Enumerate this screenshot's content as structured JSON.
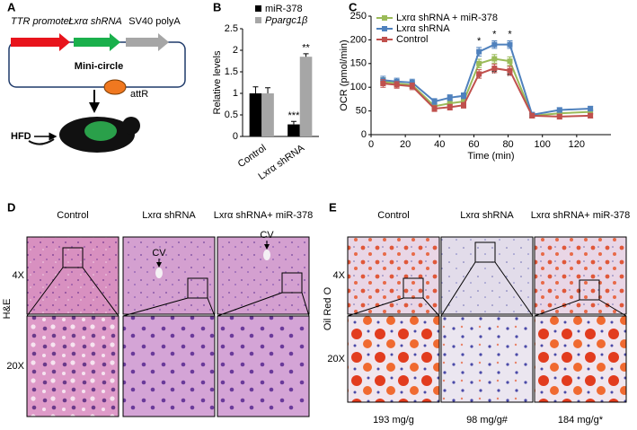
{
  "panel_labels": [
    "A",
    "B",
    "C",
    "D",
    "E"
  ],
  "construct": {
    "promoter": "TTR promoter",
    "shrna": "Lxrα shRNA",
    "polya": "SV40 polyA",
    "name": "Mini-circle",
    "site": "attR",
    "diet": "HFD"
  },
  "chart_data": [
    {
      "type": "bar",
      "ylabel": "Relative levels",
      "categories": [
        "Control",
        "Lxrα shRNA"
      ],
      "series": [
        {
          "name": "miR-378",
          "color": "#000000",
          "values": [
            1.0,
            0.28
          ],
          "errors": [
            0.15,
            0.07
          ],
          "significance": [
            null,
            "***"
          ]
        },
        {
          "name": "Ppargc1β",
          "color": "#a6a6a6",
          "values": [
            1.0,
            1.85
          ],
          "errors": [
            0.13,
            0.07
          ],
          "significance": [
            null,
            "**"
          ]
        }
      ],
      "ylim": [
        0,
        2.5
      ],
      "yticks": [
        0,
        0.5,
        1,
        1.5,
        2,
        2.5
      ]
    },
    {
      "type": "line",
      "xlabel": "Time (min)",
      "ylabel": "OCR (pmol/min)",
      "x": [
        7,
        15,
        24,
        37,
        46,
        54,
        63,
        72,
        81,
        94,
        110,
        128
      ],
      "series": [
        {
          "name": "Lxrα shRNA + miR-378",
          "color": "#9bbb59",
          "values": [
            112,
            108,
            105,
            60,
            66,
            70,
            150,
            160,
            155,
            40,
            45,
            48
          ],
          "errors": [
            8,
            7,
            7,
            6,
            6,
            6,
            9,
            9,
            9,
            5,
            5,
            5
          ],
          "significance": [
            null,
            null,
            null,
            null,
            null,
            null,
            "#",
            "#",
            "#",
            null,
            null,
            null
          ]
        },
        {
          "name": "Lxrα shRNA",
          "color": "#4f81bd",
          "values": [
            115,
            112,
            110,
            70,
            78,
            82,
            175,
            190,
            190,
            42,
            52,
            55
          ],
          "errors": [
            8,
            7,
            7,
            6,
            6,
            6,
            9,
            8,
            8,
            5,
            5,
            5
          ],
          "significance": [
            null,
            null,
            null,
            null,
            null,
            null,
            "*",
            "*",
            "*",
            null,
            null,
            null
          ]
        },
        {
          "name": "Control",
          "color": "#c0504d",
          "values": [
            108,
            105,
            102,
            55,
            58,
            62,
            128,
            140,
            135,
            40,
            38,
            40
          ],
          "errors": [
            8,
            7,
            7,
            6,
            6,
            6,
            9,
            9,
            9,
            5,
            5,
            5
          ]
        }
      ],
      "xlim": [
        0,
        140
      ],
      "xticks": [
        0,
        20,
        40,
        60,
        80,
        100,
        120
      ],
      "ylim": [
        0,
        250
      ],
      "yticks": [
        0,
        50,
        100,
        150,
        200,
        250
      ]
    }
  ],
  "histology_he": {
    "columns": [
      "Control",
      "Lxrα shRNA",
      "Lxrα shRNA+ miR-378"
    ],
    "rows": [
      "4X",
      "20X"
    ],
    "stain": "H&E",
    "annotations": [
      "CV",
      "CV"
    ]
  },
  "histology_oil_red": {
    "columns": [
      "Control",
      "Lxrα shRNA",
      "Lxrα shRNA+ miR-378"
    ],
    "rows": [
      "4X",
      "20X"
    ],
    "stain": "Oil Red O",
    "tg_content": [
      "193 mg/g",
      "98 mg/g#",
      "184 mg/g*"
    ]
  }
}
